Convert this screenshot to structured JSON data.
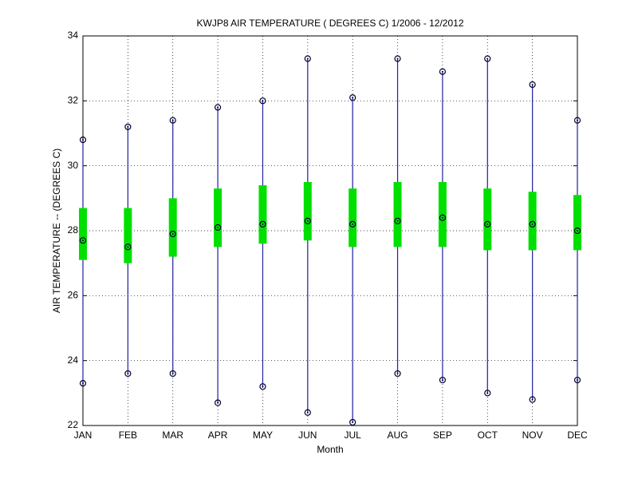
{
  "chart_data": {
    "type": "box",
    "title": "KWJP8  AIR TEMPERATURE ( DEGREES C) 1/2006 - 12/2012",
    "x_label": "Month",
    "y_label": "AIR TEMPERATURE -- (DEGREES C)",
    "categories": [
      "JAN",
      "FEB",
      "MAR",
      "APR",
      "MAY",
      "JUN",
      "JUL",
      "AUG",
      "SEP",
      "OCT",
      "NOV",
      "DEC"
    ],
    "max": [
      30.8,
      31.2,
      31.4,
      31.8,
      32.0,
      33.3,
      32.1,
      33.3,
      32.9,
      33.3,
      32.5,
      31.4
    ],
    "min": [
      23.3,
      23.6,
      23.6,
      22.7,
      23.2,
      22.4,
      22.1,
      23.6,
      23.4,
      23.0,
      22.8,
      23.4
    ],
    "q1": [
      27.1,
      27.0,
      27.2,
      27.5,
      27.6,
      27.7,
      27.5,
      27.5,
      27.5,
      27.4,
      27.4,
      27.4
    ],
    "q3": [
      28.7,
      28.7,
      29.0,
      29.3,
      29.4,
      29.5,
      29.3,
      29.5,
      29.5,
      29.3,
      29.2,
      29.1
    ],
    "mean": [
      27.7,
      27.5,
      27.9,
      28.1,
      28.2,
      28.3,
      28.2,
      28.3,
      28.4,
      28.2,
      28.2,
      28.0
    ],
    "whisker_color": "#2020a0",
    "box_color": "#00e000",
    "marker_color": "#000033",
    "ylim": [
      22,
      34
    ],
    "yticks": [
      22,
      24,
      26,
      28,
      30,
      32,
      34
    ],
    "grid": true
  }
}
